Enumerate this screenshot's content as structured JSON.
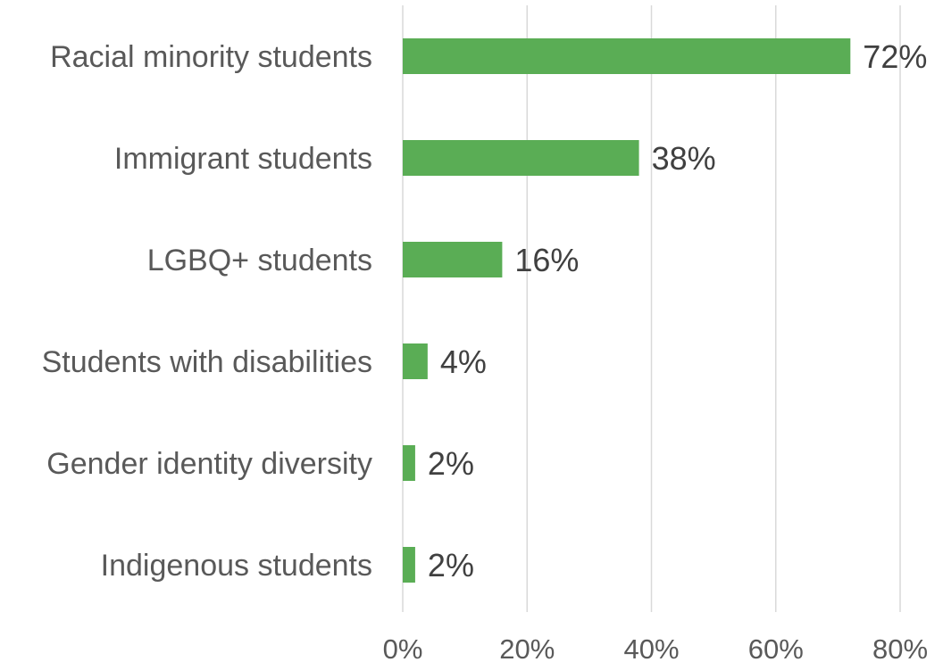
{
  "chart_data": {
    "type": "bar",
    "orientation": "horizontal",
    "categories": [
      "Racial minority students",
      "Immigrant students",
      "LGBQ+ students",
      "Students with disabilities",
      "Gender identity diversity",
      "Indigenous students"
    ],
    "values": [
      72,
      38,
      16,
      4,
      2,
      2
    ],
    "data_labels": [
      "72%",
      "38%",
      "16%",
      "4%",
      "2%",
      "2%"
    ],
    "x_ticks": [
      0,
      20,
      40,
      60,
      80
    ],
    "x_tick_labels": [
      "0%",
      "20%",
      "40%",
      "60%",
      "80%"
    ],
    "xlim": [
      0,
      80
    ],
    "grid": "vertical",
    "legend": "none",
    "bar_color": "#5aad55"
  }
}
